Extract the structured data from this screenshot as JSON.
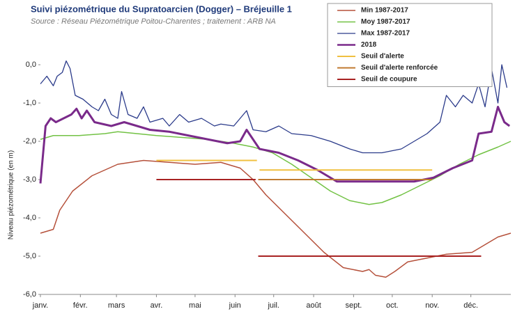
{
  "chart_data": {
    "type": "line",
    "title": "Suivi piézométrique du Supratoarcien (Dogger) – Bréjeuille 1",
    "subtitle": "Source : Réseau Piézométrique Poitou-Charentes ; traitement : ARB NA",
    "y_label": "Niveau piézométrique  (en m)",
    "xlim": [
      0,
      365
    ],
    "xticks": [
      {
        "value": 0,
        "label": "janv."
      },
      {
        "value": 31,
        "label": "févr."
      },
      {
        "value": 59,
        "label": "mars"
      },
      {
        "value": 90,
        "label": "avr."
      },
      {
        "value": 120,
        "label": "mai"
      },
      {
        "value": 151,
        "label": "juin"
      },
      {
        "value": 181,
        "label": "juil."
      },
      {
        "value": 212,
        "label": "août"
      },
      {
        "value": 243,
        "label": "sept."
      },
      {
        "value": 273,
        "label": "oct."
      },
      {
        "value": 304,
        "label": "nov."
      },
      {
        "value": 334,
        "label": "déc."
      }
    ],
    "ylim": [
      -6,
      1
    ],
    "yticks": [
      {
        "value": -6,
        "label": "-6,0"
      },
      {
        "value": -5,
        "label": "-5,0"
      },
      {
        "value": -4,
        "label": "-4,0"
      },
      {
        "value": -3,
        "label": "-3,0"
      },
      {
        "value": -2,
        "label": "-2,0"
      },
      {
        "value": -1,
        "label": "-1,0"
      },
      {
        "value": 0,
        "label": "0,0"
      }
    ],
    "series": [
      {
        "name": "Min 1987-2017",
        "color": "#b5503a",
        "width": 1.5,
        "x": [
          0,
          10,
          15,
          25,
          40,
          60,
          80,
          100,
          120,
          140,
          155,
          165,
          175,
          190,
          205,
          220,
          235,
          250,
          255,
          260,
          268,
          275,
          285,
          300,
          315,
          335,
          345,
          355,
          365
        ],
        "values": [
          -4.4,
          -4.3,
          -3.8,
          -3.3,
          -2.9,
          -2.6,
          -2.5,
          -2.55,
          -2.6,
          -2.55,
          -2.7,
          -3.0,
          -3.4,
          -3.9,
          -4.4,
          -4.9,
          -5.3,
          -5.4,
          -5.35,
          -5.5,
          -5.55,
          -5.4,
          -5.15,
          -5.05,
          -4.95,
          -4.9,
          -4.7,
          -4.5,
          -4.4
        ]
      },
      {
        "name": "Moy 1987-2017",
        "color": "#72c244",
        "width": 1.5,
        "x": [
          0,
          10,
          30,
          50,
          60,
          90,
          110,
          130,
          150,
          165,
          180,
          195,
          210,
          225,
          240,
          255,
          265,
          280,
          295,
          310,
          325,
          340,
          355,
          365
        ],
        "values": [
          -1.95,
          -1.85,
          -1.85,
          -1.8,
          -1.75,
          -1.85,
          -1.9,
          -1.95,
          -2.05,
          -2.15,
          -2.3,
          -2.6,
          -2.95,
          -3.3,
          -3.55,
          -3.65,
          -3.6,
          -3.4,
          -3.15,
          -2.9,
          -2.6,
          -2.35,
          -2.15,
          -2.0
        ]
      },
      {
        "name": "Max 1987-2017",
        "color": "#2a3a8a",
        "width": 1.3,
        "x": [
          0,
          5,
          10,
          13,
          17,
          20,
          23,
          27,
          33,
          40,
          45,
          50,
          55,
          60,
          63,
          68,
          75,
          80,
          85,
          95,
          100,
          108,
          115,
          125,
          135,
          140,
          150,
          160,
          165,
          175,
          185,
          195,
          210,
          225,
          240,
          250,
          265,
          280,
          290,
          300,
          310,
          315,
          322,
          328,
          335,
          340,
          345,
          350,
          355,
          358,
          362
        ],
        "values": [
          -0.5,
          -0.3,
          -0.55,
          -0.3,
          -0.2,
          0.1,
          -0.1,
          -0.8,
          -0.9,
          -1.1,
          -1.2,
          -0.9,
          -1.3,
          -1.4,
          -0.7,
          -1.3,
          -1.4,
          -1.1,
          -1.5,
          -1.4,
          -1.6,
          -1.3,
          -1.5,
          -1.4,
          -1.6,
          -1.55,
          -1.6,
          -1.2,
          -1.7,
          -1.75,
          -1.6,
          -1.8,
          -1.85,
          -2.0,
          -2.2,
          -2.3,
          -2.3,
          -2.2,
          -2.0,
          -1.8,
          -1.5,
          -0.8,
          -1.1,
          -0.8,
          -1.0,
          -0.5,
          -1.1,
          -0.1,
          -1.0,
          0.0,
          -0.6
        ]
      },
      {
        "name": "2018",
        "color": "#7a2a8a",
        "width": 3,
        "x": [
          0,
          4,
          8,
          12,
          18,
          24,
          28,
          32,
          36,
          42,
          55,
          65,
          75,
          85,
          100,
          115,
          130,
          145,
          155,
          160,
          170,
          185,
          200,
          215,
          230,
          260,
          290,
          305,
          320,
          335,
          340,
          350,
          355,
          360,
          364
        ],
        "values": [
          -3.1,
          -1.6,
          -1.4,
          -1.5,
          -1.4,
          -1.3,
          -1.15,
          -1.4,
          -1.2,
          -1.5,
          -1.6,
          -1.5,
          -1.6,
          -1.7,
          -1.75,
          -1.85,
          -1.95,
          -2.05,
          -2.0,
          -1.7,
          -2.2,
          -2.3,
          -2.5,
          -2.75,
          -3.05,
          -3.05,
          -3.05,
          -2.95,
          -2.7,
          -2.5,
          -1.8,
          -1.75,
          -1.1,
          -1.5,
          -1.6
        ]
      },
      {
        "name": "Seuil d'alerte",
        "color": "#f0c040",
        "width": 2,
        "x": [
          90,
          168,
          169,
          170,
          304
        ],
        "values": [
          -2.5,
          -2.5,
          null,
          -2.75,
          -2.75
        ]
      },
      {
        "name": "Seuil d'alerte renforcée",
        "color": "#c07a30",
        "width": 2,
        "x": [
          169,
          304
        ],
        "values": [
          -3.0,
          -3.0
        ]
      },
      {
        "name": "Seuil de coupure",
        "color": "#a82222",
        "width": 2,
        "x": [
          90,
          167,
          168,
          169,
          342
        ],
        "values": [
          -3.0,
          -3.0,
          null,
          -5.0,
          -5.0
        ]
      }
    ]
  }
}
